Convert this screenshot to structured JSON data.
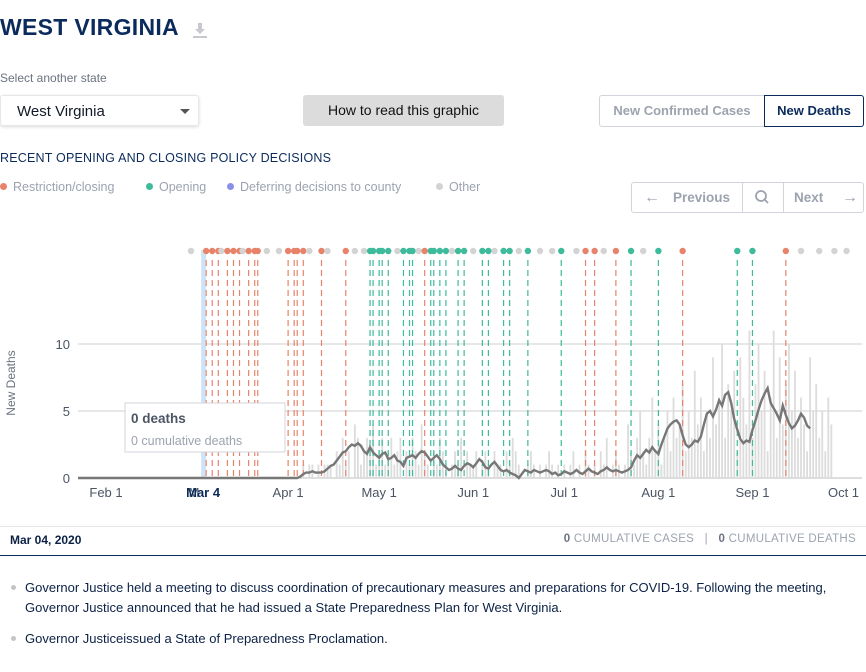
{
  "header": {
    "title": "WEST VIRGINIA",
    "download_icon": "download-icon"
  },
  "state_select": {
    "label": "Select another state",
    "value": "West Virginia"
  },
  "how_to_button": {
    "label": "How to read this graphic"
  },
  "metric_toggle": {
    "options": [
      "New Confirmed Cases",
      "New Deaths"
    ],
    "selected": "New Deaths"
  },
  "policy": {
    "title": "RECENT OPENING AND CLOSING POLICY DECISIONS",
    "legend": [
      {
        "label": "Restriction/closing",
        "color": "#e8836b"
      },
      {
        "label": "Opening",
        "color": "#3dbb9b"
      },
      {
        "label": "Deferring decisions to county",
        "color": "#8a8fe8"
      },
      {
        "label": "Other",
        "color": "#d3d3d3"
      }
    ]
  },
  "nav": {
    "previous": "Previous",
    "next": "Next",
    "search_icon": "search-icon"
  },
  "tooltip": {
    "main": "0 deaths",
    "sub": "0 cumulative deaths"
  },
  "chart_data": {
    "type": "bar",
    "ylabel": "New Deaths",
    "yticks": [
      0,
      5,
      10
    ],
    "ylim": [
      0,
      13
    ],
    "xticks": [
      {
        "label": "Feb 1",
        "day": 0
      },
      {
        "label": "M",
        "day": 29
      },
      {
        "label": "Apr 1",
        "day": 60
      },
      {
        "label": "May 1",
        "day": 90
      },
      {
        "label": "Jun 1",
        "day": 121
      },
      {
        "label": "Jul 1",
        "day": 151
      },
      {
        "label": "Aug 1",
        "day": 182
      },
      {
        "label": "Sep 1",
        "day": 213
      },
      {
        "label": "Oct 1",
        "day": 243
      }
    ],
    "highlight": {
      "label": "Mar 4",
      "day": 32
    },
    "start_date": "2020-02-01",
    "daily_bars": [
      0,
      0,
      0,
      0,
      0,
      0,
      0,
      0,
      0,
      0,
      0,
      0,
      0,
      0,
      0,
      0,
      0,
      0,
      0,
      0,
      0,
      0,
      0,
      0,
      0,
      0,
      0,
      0,
      0,
      0,
      0,
      0,
      0,
      0,
      0,
      0,
      0,
      0,
      0,
      0,
      0,
      0,
      0,
      0,
      0,
      0,
      0,
      0,
      0,
      0,
      0,
      0,
      0,
      0,
      0,
      0,
      0,
      0,
      0,
      0,
      0,
      0,
      0,
      0,
      0,
      1,
      0,
      1,
      1,
      0,
      1,
      0,
      1,
      1,
      1,
      0,
      2,
      1,
      3,
      1,
      2,
      0,
      4,
      3,
      1,
      2,
      3,
      2,
      4,
      1,
      2,
      3,
      1,
      2,
      3,
      1,
      2,
      3,
      0,
      2,
      1,
      3,
      2,
      1,
      4,
      2,
      1,
      0,
      2,
      1,
      3,
      2,
      1,
      0,
      1,
      2,
      1,
      3,
      0,
      2,
      1,
      1,
      2,
      0,
      1,
      2,
      1,
      0,
      2,
      1,
      1,
      0,
      2,
      1,
      3,
      2,
      1,
      0,
      0,
      1,
      2,
      1,
      0,
      1,
      0,
      1,
      2,
      1,
      0,
      1,
      0,
      1,
      0,
      1,
      2,
      0,
      1,
      0,
      2,
      1,
      0,
      1,
      0,
      2,
      1,
      3,
      0,
      1,
      2,
      1,
      0,
      1,
      4,
      2,
      1,
      3,
      5,
      2,
      1,
      3,
      6,
      2,
      4,
      1,
      3,
      5,
      2,
      6,
      3,
      4,
      7,
      2,
      5,
      3,
      8,
      4,
      6,
      2,
      5,
      3,
      9,
      4,
      6,
      10,
      3,
      7,
      5,
      8,
      2,
      9,
      6,
      4,
      11,
      3,
      7,
      10,
      5,
      8,
      2,
      6,
      11,
      3,
      9,
      4,
      7,
      10,
      5,
      8,
      3,
      6,
      4,
      2,
      9,
      5,
      7,
      3,
      5,
      2,
      6,
      4
    ],
    "avg_line": [
      0,
      0,
      0,
      0,
      0,
      0,
      0,
      0,
      0,
      0,
      0,
      0,
      0,
      0,
      0,
      0,
      0,
      0,
      0,
      0,
      0,
      0,
      0,
      0,
      0,
      0,
      0,
      0,
      0,
      0,
      0,
      0,
      0,
      0,
      0,
      0,
      0,
      0,
      0,
      0,
      0,
      0,
      0,
      0,
      0,
      0,
      0,
      0,
      0,
      0,
      0,
      0,
      0,
      0,
      0,
      0,
      0,
      0,
      0,
      0,
      0,
      0,
      0,
      0,
      0.1,
      0.3,
      0.4,
      0.4,
      0.5,
      0.4,
      0.4,
      0.4,
      0.5,
      0.7,
      0.9,
      1.0,
      1.3,
      1.6,
      1.9,
      2.0,
      2.3,
      2.5,
      2.4,
      2.6,
      2.4,
      2.0,
      1.8,
      2.3,
      1.9,
      1.7,
      1.5,
      1.8,
      1.9,
      1.4,
      1.5,
      1.7,
      1.3,
      1.2,
      0.9,
      1.5,
      1.6,
      1.7,
      1.5,
      1.8,
      2.0,
      1.9,
      1.6,
      1.3,
      1.5,
      1.7,
      1.4,
      1.0,
      0.8,
      0.6,
      0.7,
      0.9,
      0.7,
      0.6,
      0.9,
      1.1,
      1.0,
      0.8,
      1.1,
      1.4,
      1.2,
      0.8,
      0.7,
      1.0,
      1.2,
      0.9,
      0.6,
      0.5,
      0.6,
      0.4,
      0.3,
      0.2,
      0.0,
      0.3,
      0.6,
      0.5,
      0.4,
      0.6,
      0.5,
      0.4,
      0.5,
      0.6,
      0.5,
      0.3,
      0.4,
      0.2,
      0.3,
      0.5,
      0.4,
      0.3,
      0.4,
      0.6,
      0.4,
      0.3,
      0.5,
      0.7,
      0.5,
      0.4,
      0.3,
      0.5,
      0.6,
      0.8,
      0.6,
      0.5,
      0.6,
      0.5,
      0.4,
      0.5,
      0.6,
      0.8,
      1.3,
      1.7,
      1.5,
      1.8,
      2.1,
      1.9,
      2.3,
      2.0,
      1.8,
      2.5,
      3.1,
      3.7,
      4.0,
      4.2,
      4.3,
      4.0,
      3.2,
      2.5,
      2.3,
      2.5,
      2.8,
      2.7,
      3.1,
      4.0,
      4.8,
      5.0,
      4.6,
      5.1,
      5.8,
      5.4,
      6.2,
      6.4,
      5.6,
      4.4,
      3.6,
      2.9,
      2.6,
      2.8,
      2.7,
      3.6,
      4.3,
      5.1,
      5.8,
      6.3,
      6.7,
      5.6,
      5.2,
      4.8,
      4.3,
      5.4,
      4.7,
      4.1,
      3.7,
      3.9,
      4.3,
      4.8,
      4.5,
      3.9,
      3.7
    ],
    "policy_events": [
      {
        "day": 28,
        "type": "other"
      },
      {
        "day": 33,
        "type": "restriction"
      },
      {
        "day": 35,
        "type": "restriction"
      },
      {
        "day": 37,
        "type": "restriction"
      },
      {
        "day": 38,
        "type": "other"
      },
      {
        "day": 40,
        "type": "restriction"
      },
      {
        "day": 42,
        "type": "restriction"
      },
      {
        "day": 44,
        "type": "restriction"
      },
      {
        "day": 45,
        "type": "other"
      },
      {
        "day": 47,
        "type": "restriction"
      },
      {
        "day": 49,
        "type": "restriction"
      },
      {
        "day": 50,
        "type": "restriction"
      },
      {
        "day": 53,
        "type": "other"
      },
      {
        "day": 57,
        "type": "other"
      },
      {
        "day": 60,
        "type": "restriction"
      },
      {
        "day": 62,
        "type": "restriction"
      },
      {
        "day": 63,
        "type": "restriction"
      },
      {
        "day": 65,
        "type": "restriction"
      },
      {
        "day": 67,
        "type": "other"
      },
      {
        "day": 71,
        "type": "restriction"
      },
      {
        "day": 73,
        "type": "other"
      },
      {
        "day": 79,
        "type": "restriction"
      },
      {
        "day": 82,
        "type": "other"
      },
      {
        "day": 85,
        "type": "other"
      },
      {
        "day": 87,
        "type": "opening"
      },
      {
        "day": 88,
        "type": "opening"
      },
      {
        "day": 90,
        "type": "opening"
      },
      {
        "day": 91,
        "type": "opening"
      },
      {
        "day": 93,
        "type": "opening"
      },
      {
        "day": 96,
        "type": "other"
      },
      {
        "day": 98,
        "type": "opening"
      },
      {
        "day": 100,
        "type": "opening"
      },
      {
        "day": 101,
        "type": "opening"
      },
      {
        "day": 103,
        "type": "other"
      },
      {
        "day": 105,
        "type": "restriction"
      },
      {
        "day": 107,
        "type": "opening"
      },
      {
        "day": 108,
        "type": "opening"
      },
      {
        "day": 110,
        "type": "opening"
      },
      {
        "day": 112,
        "type": "opening"
      },
      {
        "day": 114,
        "type": "other"
      },
      {
        "day": 116,
        "type": "opening"
      },
      {
        "day": 118,
        "type": "opening"
      },
      {
        "day": 121,
        "type": "other"
      },
      {
        "day": 124,
        "type": "opening"
      },
      {
        "day": 126,
        "type": "opening"
      },
      {
        "day": 128,
        "type": "other"
      },
      {
        "day": 131,
        "type": "opening"
      },
      {
        "day": 133,
        "type": "opening"
      },
      {
        "day": 136,
        "type": "other"
      },
      {
        "day": 139,
        "type": "opening"
      },
      {
        "day": 143,
        "type": "other"
      },
      {
        "day": 147,
        "type": "other"
      },
      {
        "day": 150,
        "type": "opening"
      },
      {
        "day": 155,
        "type": "other"
      },
      {
        "day": 158,
        "type": "restriction"
      },
      {
        "day": 161,
        "type": "restriction"
      },
      {
        "day": 164,
        "type": "other"
      },
      {
        "day": 168,
        "type": "restriction"
      },
      {
        "day": 173,
        "type": "opening"
      },
      {
        "day": 177,
        "type": "other"
      },
      {
        "day": 182,
        "type": "opening"
      },
      {
        "day": 190,
        "type": "restriction"
      },
      {
        "day": 208,
        "type": "opening"
      },
      {
        "day": 213,
        "type": "opening"
      },
      {
        "day": 224,
        "type": "restriction"
      },
      {
        "day": 229,
        "type": "other"
      },
      {
        "day": 235,
        "type": "other"
      },
      {
        "day": 240,
        "type": "other"
      },
      {
        "day": 244,
        "type": "other"
      }
    ]
  },
  "detail": {
    "date": "Mar 04, 2020",
    "cumulative_cases_value": "0",
    "cumulative_cases_label": "CUMULATIVE CASES",
    "separator": "|",
    "cumulative_deaths_value": "0",
    "cumulative_deaths_label": "CUMULATIVE DEATHS"
  },
  "notes": [
    "Governor Justice held a meeting to discuss coordination of precautionary measures and preparations for COVID-19. Following the meeting, Governor Justice announced that he had issued a State Preparedness Plan for West Virginia.",
    "Governor Justiceissued a State of Preparedness Proclamation."
  ]
}
